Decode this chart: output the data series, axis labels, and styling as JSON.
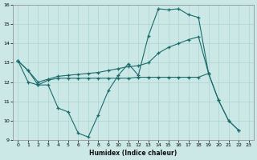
{
  "background_color": "#cce8e6",
  "grid_color": "#aad4d2",
  "line_color": "#1a6b6b",
  "xlabel": "Humidex (Indice chaleur)",
  "xlim_min": -0.5,
  "xlim_max": 23.5,
  "ylim_min": 9,
  "ylim_max": 16,
  "yticks": [
    9,
    10,
    11,
    12,
    13,
    14,
    15,
    16
  ],
  "xticks": [
    0,
    1,
    2,
    3,
    4,
    5,
    6,
    7,
    8,
    9,
    10,
    11,
    12,
    13,
    14,
    15,
    16,
    17,
    18,
    19,
    20,
    21,
    22,
    23
  ],
  "line1_x": [
    0,
    1,
    2,
    3,
    4,
    5,
    6,
    7,
    8,
    9,
    10,
    11,
    12,
    13,
    14,
    15,
    16,
    17,
    18,
    19
  ],
  "line1_y": [
    13.1,
    12.6,
    11.85,
    11.85,
    10.65,
    10.45,
    9.35,
    9.15,
    10.3,
    11.55,
    12.35,
    12.95,
    12.35,
    14.4,
    15.8,
    15.75,
    15.8,
    15.5,
    15.35,
    12.45
  ],
  "line2_x": [
    0,
    1,
    2,
    3,
    4,
    5,
    6,
    7,
    8,
    9,
    10,
    11,
    12,
    13,
    14,
    15,
    16,
    17,
    18,
    19,
    20,
    21,
    22
  ],
  "line2_y": [
    13.1,
    12.6,
    12.0,
    12.15,
    12.3,
    12.35,
    12.4,
    12.45,
    12.5,
    12.6,
    12.7,
    12.8,
    12.85,
    13.0,
    13.5,
    13.8,
    14.0,
    14.2,
    14.35,
    12.45,
    11.05,
    10.0,
    9.5
  ],
  "line3_x": [
    0,
    1,
    2,
    3,
    4,
    5,
    6,
    7,
    8,
    9,
    10,
    11,
    12,
    13,
    14,
    15,
    16,
    17,
    18,
    19,
    20,
    21,
    22
  ],
  "line3_y": [
    13.1,
    12.0,
    11.85,
    12.1,
    12.2,
    12.2,
    12.2,
    12.2,
    12.2,
    12.2,
    12.2,
    12.2,
    12.25,
    12.25,
    12.25,
    12.25,
    12.25,
    12.25,
    12.25,
    12.45,
    11.05,
    10.0,
    9.5
  ]
}
